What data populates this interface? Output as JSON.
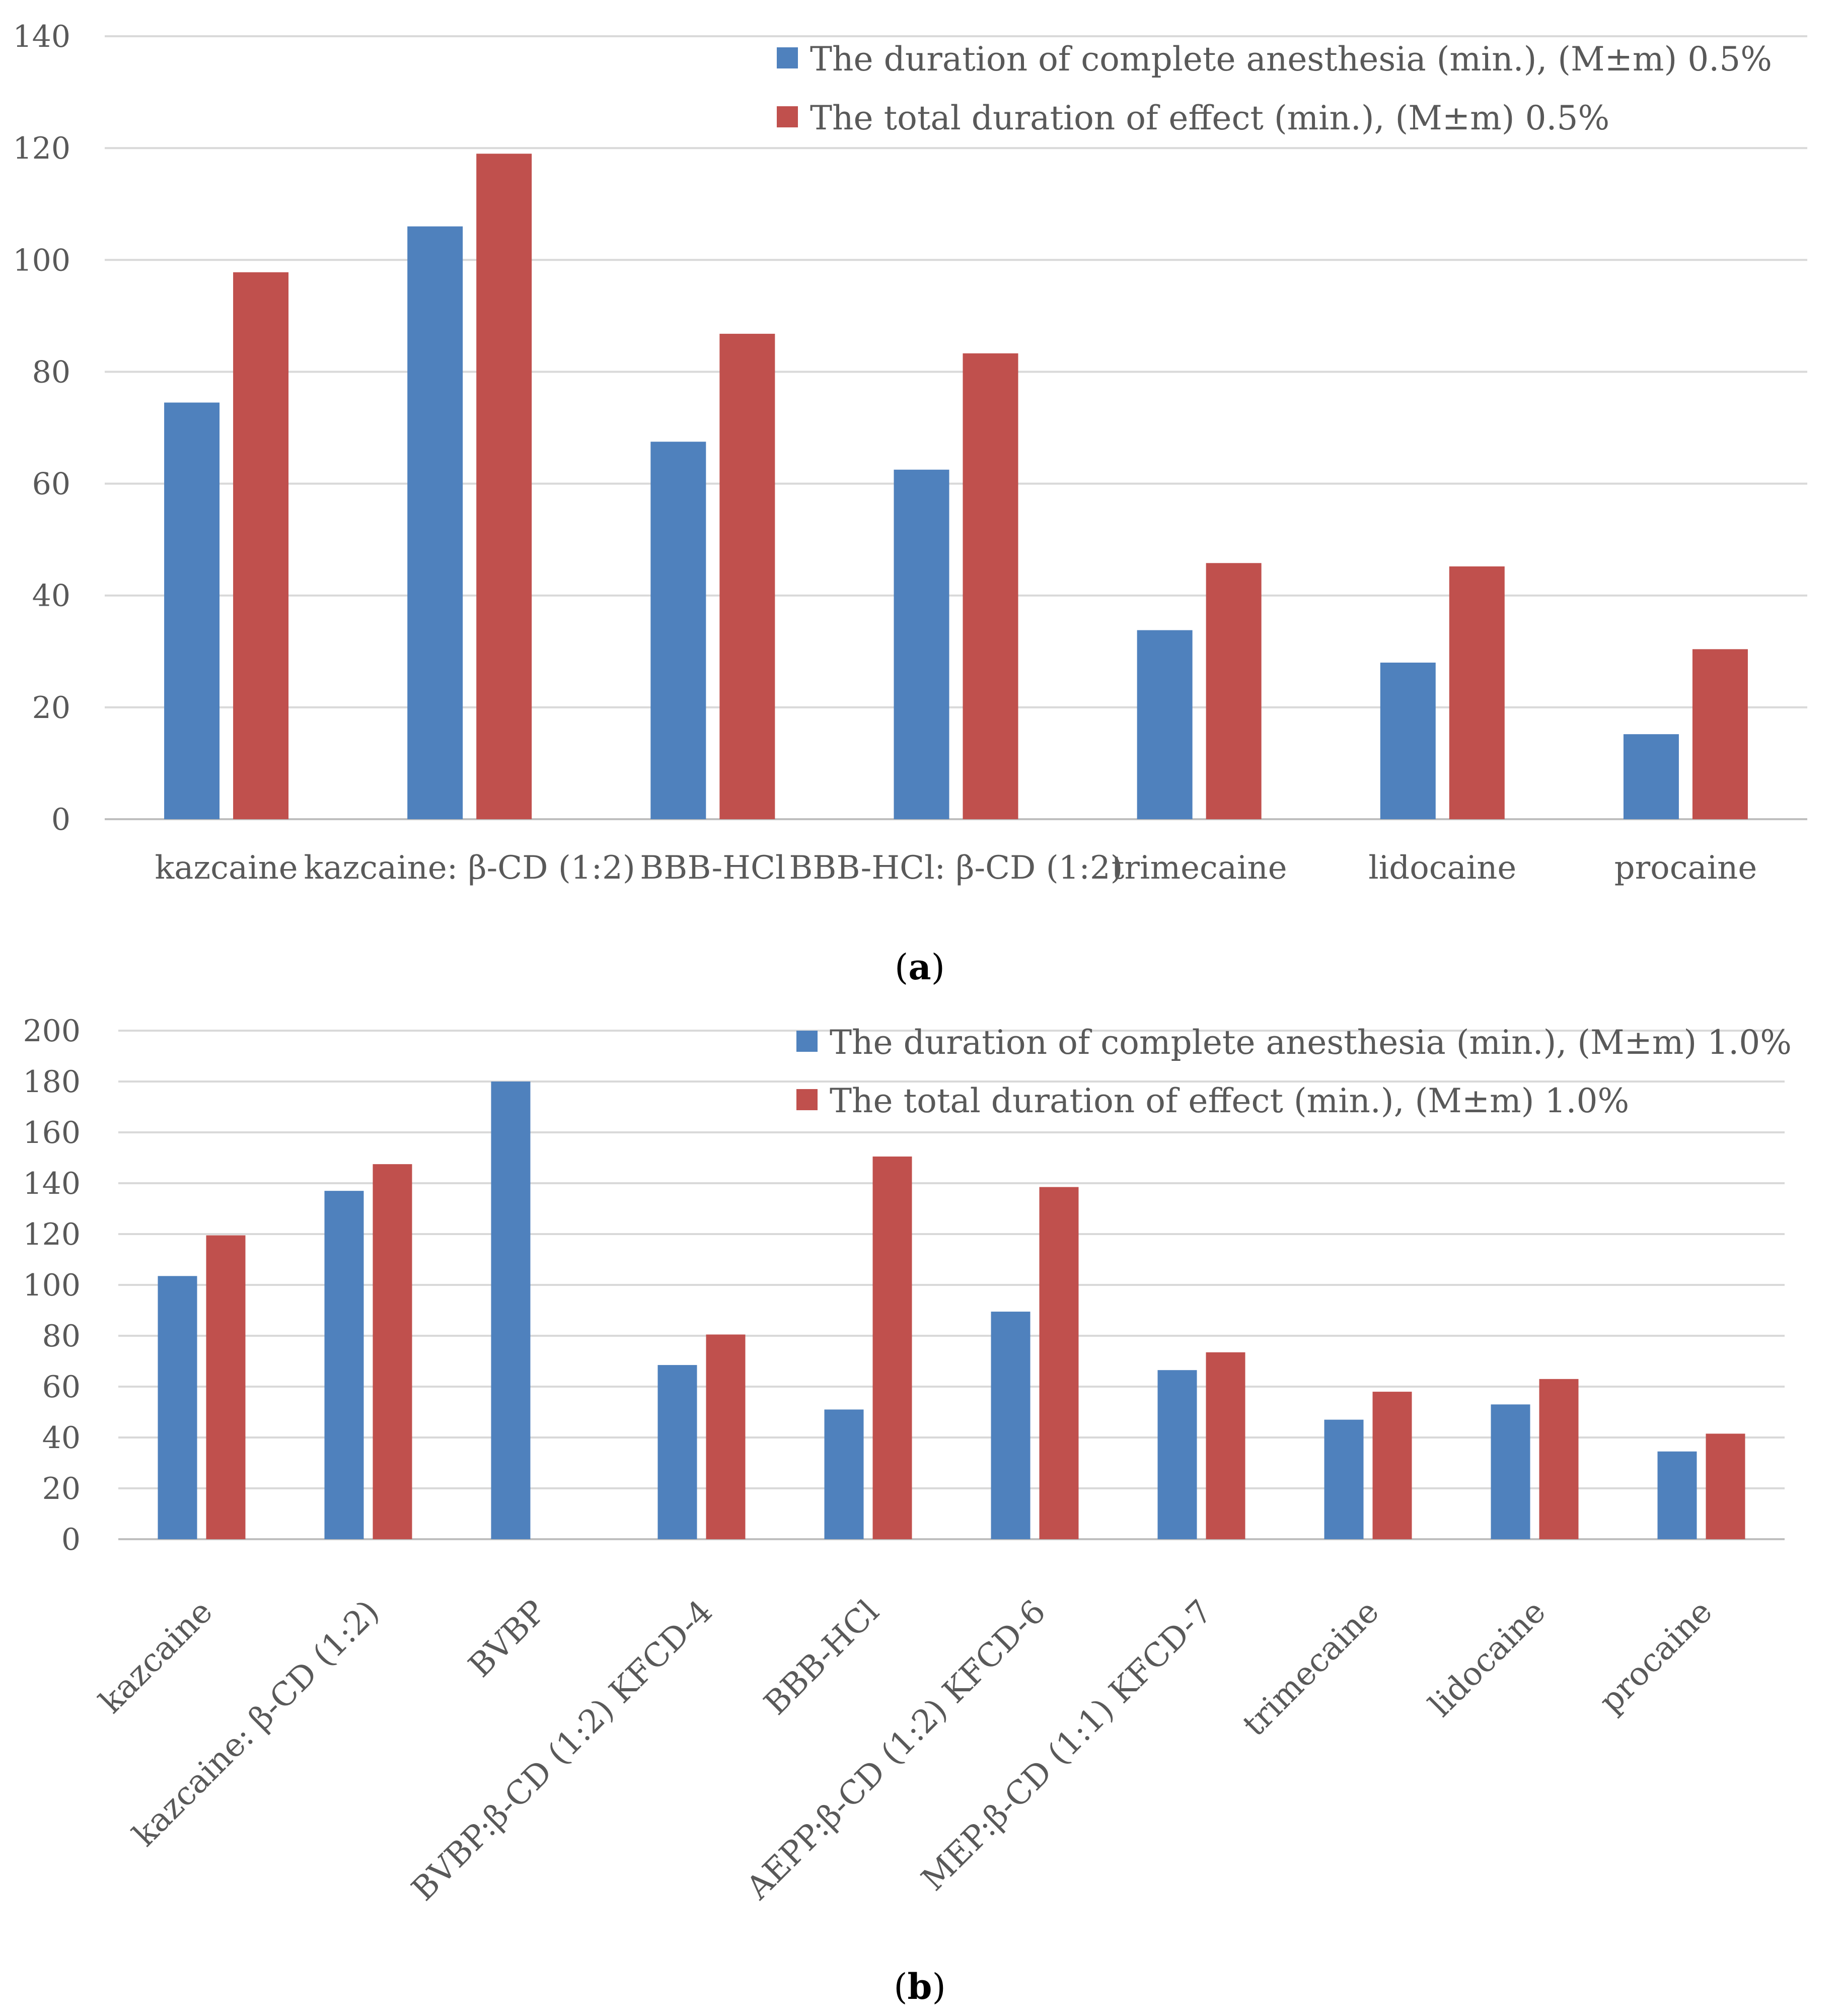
{
  "colors": {
    "blue": "#4f81bd",
    "red": "#c0504d",
    "grid": "#d9d9d9",
    "axis": "#bfbfbf"
  },
  "chart_data": [
    {
      "type": "bar",
      "caption_letter": "a",
      "categories": [
        "kazcaine",
        "kazcaine: β-CD (1:2)",
        "BBB-HCl",
        "BBB-HCl: β-CD (1:2)",
        "trimecaine",
        "lidocaine",
        "procaine"
      ],
      "series": [
        {
          "name": "The duration of complete anesthesia (min.), (M±m) 0.5%",
          "color": "#4f81bd",
          "values": [
            74.5,
            106,
            67.5,
            62.5,
            33.8,
            28,
            15.2
          ]
        },
        {
          "name": "The total duration of effect (min.), (M±m) 0.5%",
          "color": "#c0504d",
          "values": [
            97.8,
            119,
            86.8,
            83.3,
            45.8,
            45.2,
            30.4
          ]
        }
      ],
      "yticks": [
        "0",
        "20",
        "40",
        "60",
        "80",
        "100",
        "120",
        "140"
      ],
      "ylim": [
        0,
        140
      ],
      "grid": true,
      "legend_position": "top-right"
    },
    {
      "type": "bar",
      "caption_letter": "b",
      "categories": [
        "kazcaine",
        "kazcaine: β-CD (1:2)",
        "BVBP",
        "BVBP:β-CD (1:2) KFCD-4",
        "BBB-HCl",
        "AEPP:β-CD (1:2) KFCD-6",
        "MEP:β-CD (1:1) KFCD-7",
        "trimecaine",
        "lidocaine",
        "procaine"
      ],
      "series": [
        {
          "name": "The duration of complete anesthesia (min.), (M±m) 1.0%",
          "color": "#4f81bd",
          "values": [
            103.5,
            137,
            180,
            68.5,
            51,
            89.5,
            66.5,
            47,
            53,
            34.5
          ]
        },
        {
          "name": "The total duration of effect (min.), (M±m) 1.0%",
          "color": "#c0504d",
          "values": [
            119.5,
            147.5,
            null,
            80.5,
            150.5,
            138.5,
            73.5,
            58,
            63,
            41.5
          ]
        }
      ],
      "yticks": [
        "0",
        "20",
        "40",
        "60",
        "80",
        "100",
        "120",
        "140",
        "160",
        "180",
        "200"
      ],
      "ylim": [
        0,
        200
      ],
      "grid": true,
      "legend_position": "top-right"
    }
  ]
}
